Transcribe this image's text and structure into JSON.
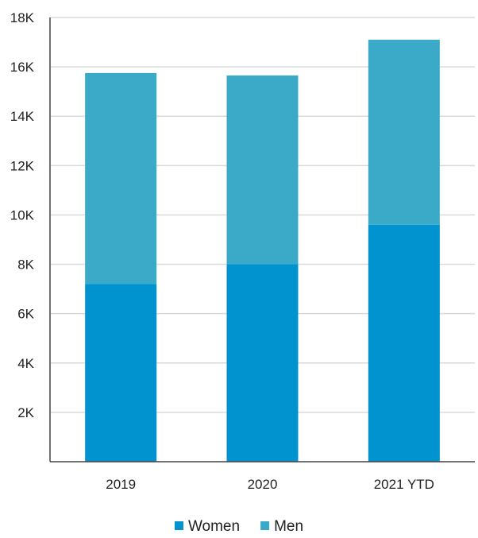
{
  "chart_data": {
    "type": "bar",
    "stacked": true,
    "categories": [
      "2019",
      "2020",
      "2021 YTD"
    ],
    "series": [
      {
        "name": "Women",
        "values": [
          7200,
          8000,
          9600
        ],
        "color": "#0093CF"
      },
      {
        "name": "Men",
        "values": [
          8550,
          7650,
          7500
        ],
        "color": "#3BAAC9"
      }
    ],
    "title": "",
    "xlabel": "",
    "ylabel": "",
    "ylim": [
      0,
      18000
    ],
    "yticks": [
      2000,
      4000,
      6000,
      8000,
      10000,
      12000,
      14000,
      16000,
      18000
    ],
    "ytick_labels": [
      "2K",
      "4K",
      "6K",
      "8K",
      "10K",
      "12K",
      "14K",
      "16K",
      "18K"
    ],
    "grid": true,
    "legend": {
      "position": "bottom"
    }
  },
  "colors": {
    "grid": "#d9d9d9",
    "axis": "#444444",
    "text": "#222222"
  }
}
